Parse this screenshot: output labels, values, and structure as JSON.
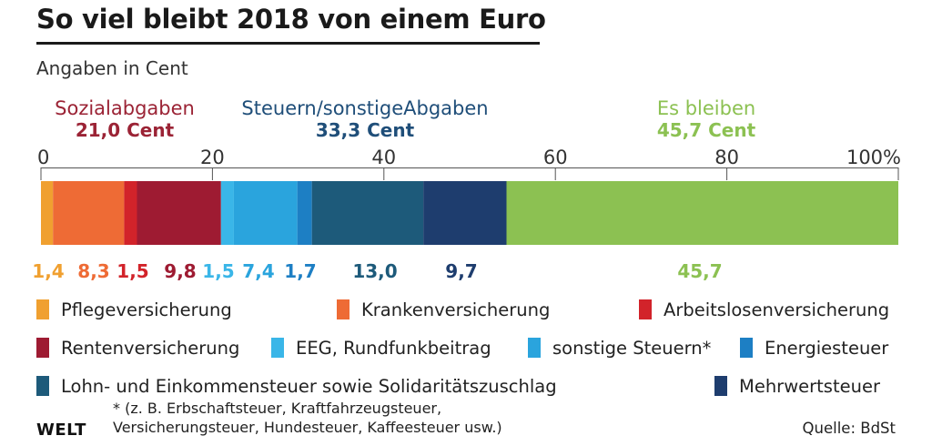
{
  "header": {
    "title": "So viel bleibt 2018 von einem Euro",
    "subtitle": "Angaben in Cent"
  },
  "chart_data": {
    "type": "bar",
    "orientation": "horizontal-stacked",
    "xlim": [
      0,
      100
    ],
    "xticks": [
      "0",
      "20",
      "40",
      "60",
      "80",
      "100%"
    ],
    "xtick_values": [
      0,
      20,
      40,
      60,
      80,
      100
    ],
    "groups": [
      {
        "label": "Sozialabgaben",
        "value_label": "21,0 Cent",
        "color": "#9b2335",
        "start": 0,
        "end": 21.0
      },
      {
        "label": "Steuern/sonstigeAbgaben",
        "value_label": "33,3 Cent",
        "color": "#1f4e79",
        "start": 21.0,
        "end": 54.3
      },
      {
        "label": "Es bleiben",
        "value_label": "45,7 Cent",
        "color": "#8cc152",
        "start": 54.3,
        "end": 100
      }
    ],
    "series": [
      {
        "name": "Pflegeversicherung",
        "value": 1.4,
        "label": "1,4",
        "color": "#f0a030"
      },
      {
        "name": "Krankenversicherung",
        "value": 8.3,
        "label": "8,3",
        "color": "#ee6b35"
      },
      {
        "name": "Arbeitslosenversicherung",
        "value": 1.5,
        "label": "1,5",
        "color": "#d2232a"
      },
      {
        "name": "Rentenversicherung",
        "value": 9.8,
        "label": "9,8",
        "color": "#9e1b32"
      },
      {
        "name": "EEG, Rundfunkbeitrag",
        "value": 1.5,
        "label": "1,5",
        "color": "#3ab6e8"
      },
      {
        "name": "sonstige Steuern*",
        "value": 7.4,
        "label": "7,4",
        "color": "#2aa4dd"
      },
      {
        "name": "Energiesteuer",
        "value": 1.7,
        "label": "1,7",
        "color": "#1d7fc4"
      },
      {
        "name": "Lohn- und Einkommensteuer sowie Solidaritätszuschlag",
        "value": 13.0,
        "label": "13,0",
        "color": "#1d5a7a"
      },
      {
        "name": "Mehrwertsteuer",
        "value": 9.7,
        "label": "9,7",
        "color": "#1e3d6e"
      },
      {
        "name": "",
        "value": 45.7,
        "label": "45,7",
        "color": "#8cc152"
      }
    ],
    "label_colors": [
      "#f0a030",
      "#ee6b35",
      "#d2232a",
      "#9e1b32",
      "#3ab6e8",
      "#2aa4dd",
      "#1d7fc4",
      "#1d5a7a",
      "#1e3d6e",
      "#8cc152"
    ]
  },
  "legend": {
    "items": [
      {
        "label": "Pflegeversicherung",
        "color": "#f0a030"
      },
      {
        "label": "Krankenversicherung",
        "color": "#ee6b35"
      },
      {
        "label": "Arbeitslosenversicherung",
        "color": "#d2232a"
      },
      {
        "label": "Rentenversicherung",
        "color": "#9e1b32"
      },
      {
        "label": "EEG, Rundfunkbeitrag",
        "color": "#3ab6e8"
      },
      {
        "label": "sonstige Steuern*",
        "color": "#2aa4dd"
      },
      {
        "label": "Energiesteuer",
        "color": "#1d7fc4"
      },
      {
        "label": "Lohn- und Einkommensteuer sowie Solidaritätszuschlag",
        "color": "#1d5a7a"
      },
      {
        "label": "Mehrwertsteuer",
        "color": "#1e3d6e"
      }
    ]
  },
  "footnote": {
    "line1": "* (z. B. Erbschaftsteuer, Kraftfahrzeugsteuer,",
    "line2": "Versicherungsteuer, Hundesteuer, Kaffeesteuer usw.)"
  },
  "footer": {
    "logo": "WELT",
    "source": "Quelle: BdSt"
  }
}
